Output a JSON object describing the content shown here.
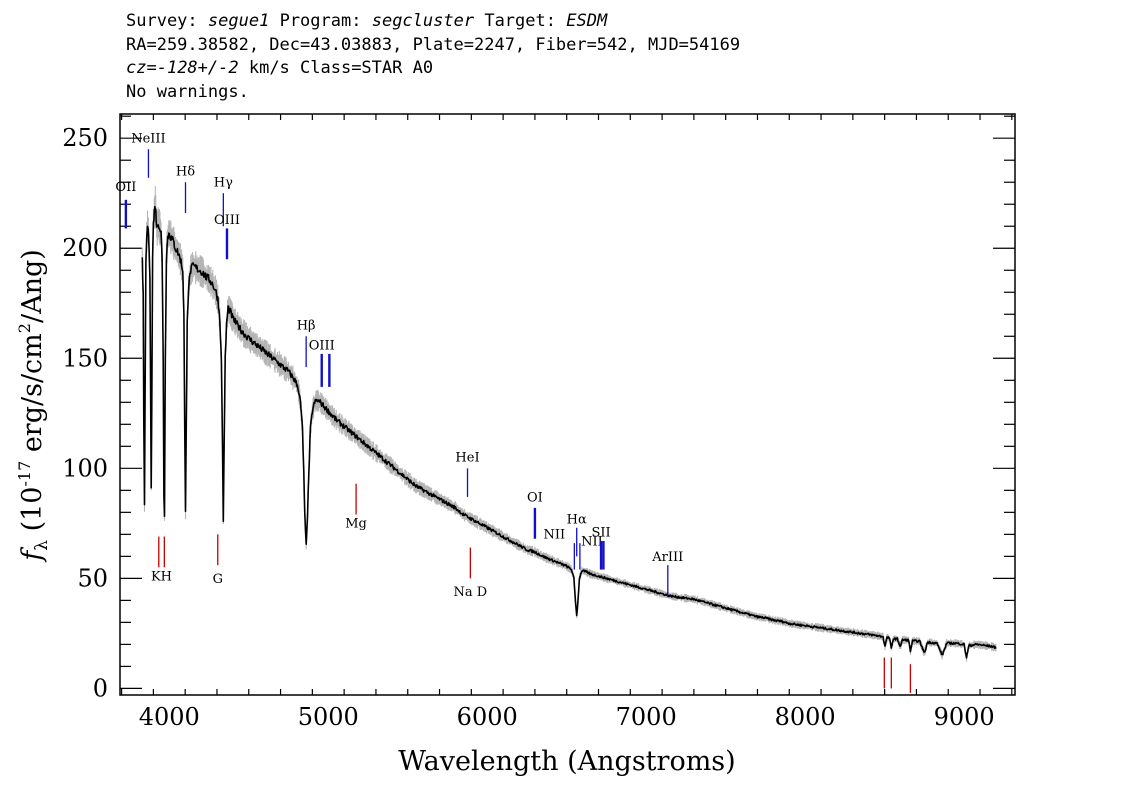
{
  "header": {
    "survey_label": "Survey:",
    "survey": "segue1",
    "program_label": "Program:",
    "program": "segcluster",
    "target_label": "Target:",
    "target": "ESDM",
    "line2": "RA=259.38582, Dec=43.03883, Plate=2247, Fiber=542, MJD=54169",
    "cz_label": "cz=",
    "cz_value": "-128+/-2",
    "cz_rest": " km/s Class=STAR A0",
    "warnings": "No warnings."
  },
  "colors": {
    "emission": "#1010c8",
    "absorption": "#c80000",
    "flux": "#000000",
    "error": "#b4b4b4"
  },
  "chart_data": {
    "type": "line",
    "title": "",
    "xlabel": "Wavelength (Angstroms)",
    "ylabel": "f_λ (10^-17 erg/s/cm^2/Ang)",
    "xlim": [
      3690,
      9320
    ],
    "ylim": [
      -3,
      261
    ],
    "x_ticks": [
      4000,
      5000,
      6000,
      7000,
      8000,
      9000
    ],
    "y_ticks": [
      0,
      50,
      100,
      150,
      200,
      250
    ],
    "x_tick_labels": [
      "4000",
      "5000",
      "6000",
      "7000",
      "8000",
      "9000"
    ],
    "y_tick_labels": [
      "0",
      "50",
      "100",
      "150",
      "200",
      "250"
    ],
    "grid": false,
    "series": [
      {
        "values": [
          [
            3830,
            197
          ],
          [
            3836,
            178
          ],
          [
            3840,
            120
          ],
          [
            3844,
            83
          ],
          [
            3848,
            135
          ],
          [
            3853,
            192
          ],
          [
            3858,
            205
          ],
          [
            3863,
            210
          ],
          [
            3868,
            208
          ],
          [
            3873,
            200
          ],
          [
            3878,
            185
          ],
          [
            3882,
            145
          ],
          [
            3886,
            92
          ],
          [
            3890,
            130
          ],
          [
            3895,
            196
          ],
          [
            3900,
            211
          ],
          [
            3906,
            216
          ],
          [
            3912,
            220
          ],
          [
            3918,
            213
          ],
          [
            3924,
            209
          ],
          [
            3930,
            212
          ],
          [
            3938,
            210
          ],
          [
            3948,
            207
          ],
          [
            3955,
            195
          ],
          [
            3962,
            150
          ],
          [
            3966,
            88
          ],
          [
            3970,
            78
          ],
          [
            3975,
            150
          ],
          [
            3982,
            196
          ],
          [
            3990,
            205
          ],
          [
            4000,
            207
          ],
          [
            4010,
            205
          ],
          [
            4025,
            203
          ],
          [
            4040,
            200
          ],
          [
            4055,
            198
          ],
          [
            4070,
            195
          ],
          [
            4085,
            190
          ],
          [
            4092,
            170
          ],
          [
            4097,
            120
          ],
          [
            4102,
            80
          ],
          [
            4107,
            120
          ],
          [
            4113,
            168
          ],
          [
            4122,
            183
          ],
          [
            4135,
            190
          ],
          [
            4150,
            192
          ],
          [
            4170,
            191
          ],
          [
            4190,
            190
          ],
          [
            4210,
            189
          ],
          [
            4230,
            187
          ],
          [
            4250,
            186
          ],
          [
            4270,
            184
          ],
          [
            4290,
            181
          ],
          [
            4305,
            177
          ],
          [
            4318,
            168
          ],
          [
            4328,
            148
          ],
          [
            4335,
            110
          ],
          [
            4340,
            76
          ],
          [
            4345,
            110
          ],
          [
            4352,
            150
          ],
          [
            4360,
            165
          ],
          [
            4370,
            173
          ],
          [
            4385,
            171
          ],
          [
            4400,
            168
          ],
          [
            4430,
            165
          ],
          [
            4460,
            162
          ],
          [
            4500,
            159
          ],
          [
            4550,
            156
          ],
          [
            4600,
            153
          ],
          [
            4650,
            150
          ],
          [
            4700,
            147
          ],
          [
            4750,
            144
          ],
          [
            4790,
            140
          ],
          [
            4810,
            137
          ],
          [
            4825,
            130
          ],
          [
            4838,
            118
          ],
          [
            4846,
            98
          ],
          [
            4852,
            80
          ],
          [
            4861,
            65
          ],
          [
            4870,
            80
          ],
          [
            4878,
            98
          ],
          [
            4888,
            118
          ],
          [
            4900,
            126
          ],
          [
            4915,
            130
          ],
          [
            4930,
            131
          ],
          [
            4950,
            130
          ],
          [
            4975,
            128
          ],
          [
            5000,
            126
          ],
          [
            5050,
            122
          ],
          [
            5100,
            119
          ],
          [
            5150,
            116
          ],
          [
            5200,
            113
          ],
          [
            5250,
            110
          ],
          [
            5300,
            107
          ],
          [
            5350,
            104
          ],
          [
            5400,
            101
          ],
          [
            5450,
            98
          ],
          [
            5500,
            95
          ],
          [
            5550,
            92
          ],
          [
            5600,
            90
          ],
          [
            5650,
            88
          ],
          [
            5700,
            86
          ],
          [
            5750,
            84
          ],
          [
            5800,
            82
          ],
          [
            5850,
            79
          ],
          [
            5900,
            77
          ],
          [
            5950,
            75
          ],
          [
            6000,
            73
          ],
          [
            6050,
            71
          ],
          [
            6100,
            69
          ],
          [
            6150,
            67
          ],
          [
            6200,
            65
          ],
          [
            6250,
            63
          ],
          [
            6300,
            62
          ],
          [
            6350,
            60
          ],
          [
            6400,
            58.5
          ],
          [
            6450,
            57
          ],
          [
            6500,
            55.5
          ],
          [
            6530,
            54
          ],
          [
            6545,
            50
          ],
          [
            6555,
            40
          ],
          [
            6563,
            33
          ],
          [
            6571,
            40
          ],
          [
            6580,
            50
          ],
          [
            6595,
            53.5
          ],
          [
            6620,
            53
          ],
          [
            6650,
            52
          ],
          [
            6700,
            51
          ],
          [
            6750,
            50
          ],
          [
            6800,
            49
          ],
          [
            6850,
            48
          ],
          [
            6900,
            47
          ],
          [
            6950,
            46
          ],
          [
            7000,
            45
          ],
          [
            7050,
            44
          ],
          [
            7100,
            43
          ],
          [
            7150,
            42
          ],
          [
            7200,
            41.5
          ],
          [
            7250,
            41
          ],
          [
            7300,
            40.5
          ],
          [
            7350,
            39.5
          ],
          [
            7400,
            38.5
          ],
          [
            7450,
            37.5
          ],
          [
            7500,
            36.5
          ],
          [
            7550,
            35.5
          ],
          [
            7600,
            34.5
          ],
          [
            7650,
            33.5
          ],
          [
            7700,
            32.5
          ],
          [
            7750,
            32
          ],
          [
            7800,
            31
          ],
          [
            7850,
            30.5
          ],
          [
            7900,
            29.5
          ],
          [
            7950,
            29
          ],
          [
            8000,
            28.5
          ],
          [
            8050,
            28
          ],
          [
            8100,
            27.5
          ],
          [
            8150,
            27
          ],
          [
            8200,
            26.5
          ],
          [
            8250,
            26
          ],
          [
            8300,
            25.5
          ],
          [
            8350,
            25
          ],
          [
            8400,
            24.5
          ],
          [
            8450,
            24
          ],
          [
            8490,
            23.5
          ],
          [
            8502,
            19
          ],
          [
            8514,
            23
          ],
          [
            8530,
            23
          ],
          [
            8542,
            18
          ],
          [
            8554,
            22.5
          ],
          [
            8580,
            22.5
          ],
          [
            8598,
            19
          ],
          [
            8612,
            22
          ],
          [
            8650,
            22
          ],
          [
            8662,
            17
          ],
          [
            8675,
            21.5
          ],
          [
            8720,
            21.5
          ],
          [
            8750,
            16
          ],
          [
            8770,
            21
          ],
          [
            8830,
            20.5
          ],
          [
            8862,
            15
          ],
          [
            8890,
            20.5
          ],
          [
            8950,
            20.5
          ],
          [
            9000,
            20
          ],
          [
            9015,
            14
          ],
          [
            9030,
            19.5
          ],
          [
            9080,
            20
          ],
          [
            9130,
            19.5
          ],
          [
            9180,
            19
          ],
          [
            9200,
            18.5
          ]
        ]
      }
    ],
    "emission_lines": [
      {
        "label": "OII",
        "wavelength": 3727,
        "y": [
          209,
          222
        ],
        "label_y": 226
      },
      {
        "label": "NeIII",
        "wavelength": 3869,
        "y": [
          232,
          245
        ],
        "label_y": 248
      },
      {
        "label": "Hδ",
        "wavelength": 4102,
        "y": [
          216,
          230
        ],
        "label_y": 233
      },
      {
        "label": "Hγ",
        "wavelength": 4340,
        "y": [
          210,
          225
        ],
        "label_y": 228
      },
      {
        "label": "OIII",
        "wavelength": 4363,
        "y": [
          195,
          209
        ],
        "label_y": 211
      },
      {
        "label": "Hβ",
        "wavelength": 4861,
        "y": [
          146,
          160
        ],
        "label_y": 163
      },
      {
        "label": "OIII",
        "wavelength": 4959,
        "y": [
          137,
          152
        ],
        "label_y": 154
      },
      {
        "label": "",
        "wavelength": 5007,
        "y": [
          137,
          152
        ]
      },
      {
        "label": "HeI",
        "wavelength": 5876,
        "y": [
          87,
          100
        ],
        "label_y": 103
      },
      {
        "label": "OI",
        "wavelength": 6300,
        "y": [
          68,
          82
        ],
        "label_y": 85
      },
      {
        "label": "NII",
        "wavelength": 6548,
        "y": [
          54,
          66
        ],
        "label_y": 68,
        "label_offset": -20
      },
      {
        "label": "Hα",
        "wavelength": 6563,
        "y": [
          60,
          73
        ],
        "label_y": 75
      },
      {
        "label": "NII",
        "wavelength": 6583,
        "y": [
          54,
          66
        ],
        "label_y": 65,
        "label_offset": 12
      },
      {
        "label": "SII",
        "wavelength": 6716,
        "y": [
          54,
          67
        ],
        "label_y": 69
      },
      {
        "label": "",
        "wavelength": 6731,
        "y": [
          54,
          67
        ]
      },
      {
        "label": "ArIII",
        "wavelength": 7136,
        "y": [
          42,
          56
        ],
        "label_y": 58
      }
    ],
    "absorption_lines": [
      {
        "label": "K",
        "wavelength": 3934,
        "y": [
          55,
          69
        ]
      },
      {
        "label": "H",
        "wavelength": 3969,
        "y": [
          55,
          69
        ]
      },
      {
        "label": "KH",
        "wavelength": 3951,
        "y": [
          55,
          69
        ],
        "label_only": true,
        "label_y": 49
      },
      {
        "label": "G",
        "wavelength": 4305,
        "y": [
          56,
          70
        ],
        "label_y": 48
      },
      {
        "label": "Mg",
        "wavelength": 5175,
        "y": [
          79,
          93
        ],
        "label_y": 73
      },
      {
        "label": "Na D",
        "wavelength": 5894,
        "y": [
          50,
          64
        ],
        "label_y": 42
      },
      {
        "label": "",
        "wavelength": 8498,
        "y": [
          0,
          14
        ]
      },
      {
        "label": "",
        "wavelength": 8542,
        "y": [
          0,
          14
        ]
      },
      {
        "label": "",
        "wavelength": 8662,
        "y": [
          -2,
          11
        ]
      }
    ]
  }
}
